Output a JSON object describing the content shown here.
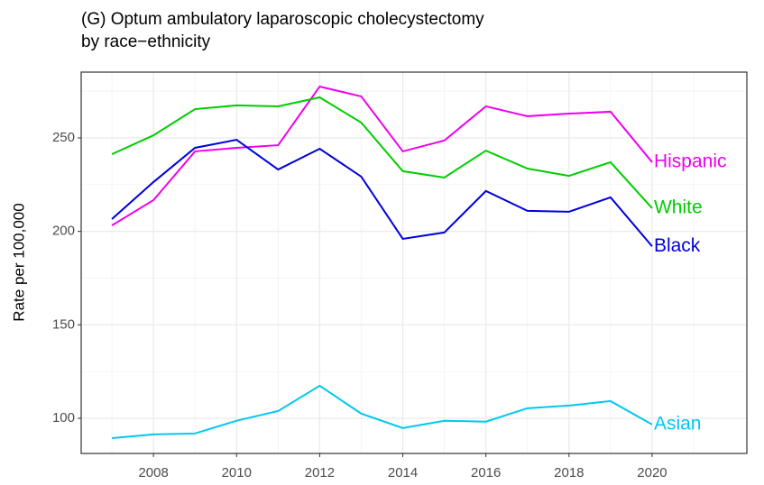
{
  "chart_data": {
    "type": "line",
    "title_lines": [
      "(G) Optum ambulatory laparoscopic cholecystectomy",
      "by race−ethnicity"
    ],
    "y_label": "Rate per 100,000",
    "x": [
      2007,
      2008,
      2009,
      2010,
      2011,
      2012,
      2013,
      2014,
      2015,
      2016,
      2017,
      2018,
      2019,
      2020
    ],
    "series": [
      {
        "name": "Hispanic",
        "color": "#ee00ee",
        "values": [
          203.2,
          216.7,
          242.8,
          244.7,
          246.1,
          277.5,
          272.2,
          242.8,
          248.6,
          266.9,
          261.6,
          263,
          264,
          237
        ]
      },
      {
        "name": "White",
        "color": "#00cd00",
        "values": [
          241.3,
          251.4,
          265.4,
          267.4,
          266.9,
          271.7,
          258.2,
          232.2,
          228.8,
          243.2,
          233.6,
          229.7,
          237,
          212.4
        ]
      },
      {
        "name": "Black",
        "color": "#0000dd",
        "values": [
          206.6,
          226.4,
          244.7,
          249,
          233.1,
          244.2,
          229.3,
          196,
          199.4,
          221.6,
          211,
          210.5,
          218.2,
          192
        ]
      },
      {
        "name": "Asian",
        "color": "#00c8f0",
        "values": [
          89.4,
          91.4,
          91.9,
          98.7,
          103.9,
          117.4,
          102.5,
          94.8,
          98.7,
          98.2,
          105.4,
          106.8,
          109.2,
          96.7
        ]
      }
    ],
    "xlim": [
      2006.26,
      2022.28
    ],
    "xticks": [
      2008,
      2010,
      2012,
      2014,
      2016,
      2018,
      2020
    ],
    "ylim": [
      81.2,
      285.2
    ],
    "yticks": [
      100,
      150,
      200,
      250
    ],
    "grid": true,
    "minor_grid": true,
    "end_labels": true
  }
}
